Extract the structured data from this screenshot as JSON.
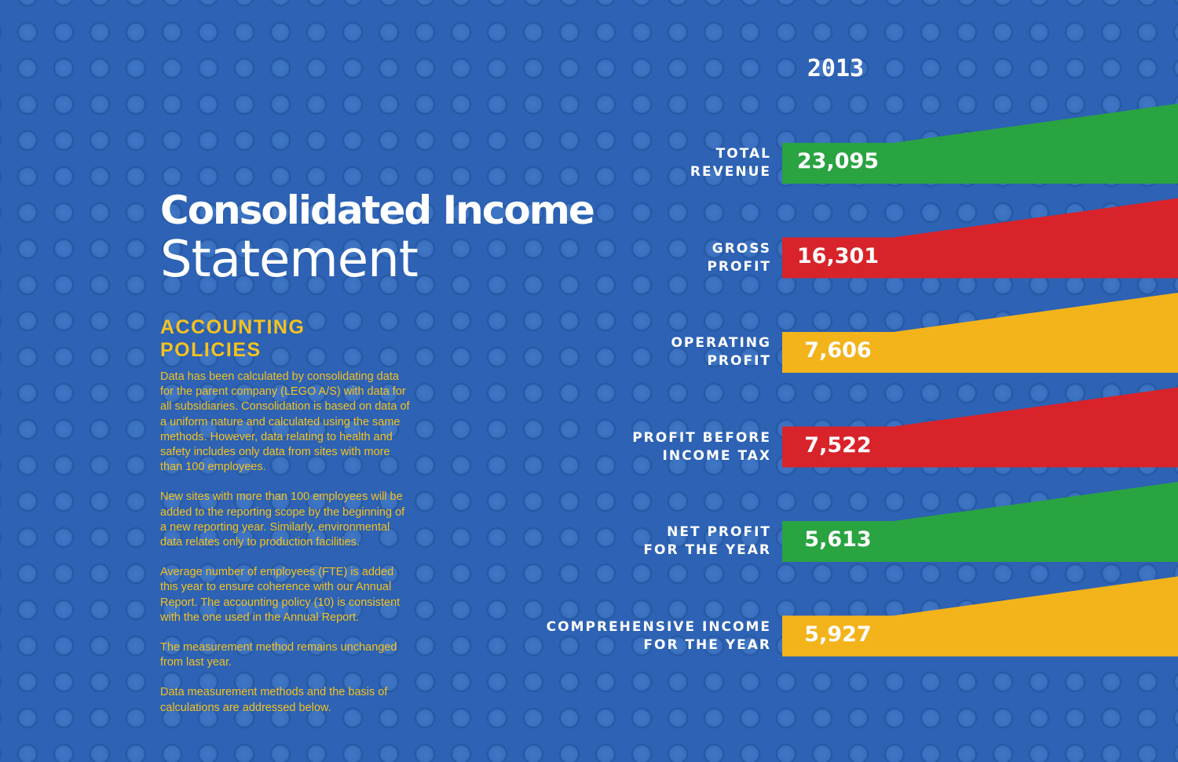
{
  "title": {
    "line1": "Consolidated Income",
    "line2": "Statement"
  },
  "policies": {
    "heading": "ACCOUNTING POLICIES",
    "paragraphs": [
      "Data has been calculated by consolidating data for the parent company (LEGO A/S) with data for all subsidiaries. Consolidation is based on data of a uniform nature and calculated using the same methods. However, data relating to health and safety includes only data from sites with more than 100 employees.",
      "New sites with more than 100 employees will be added to the reporting scope by the beginning of a new reporting year. Similarly, environmental data relates only to production facilities.",
      "Average number of employees (FTE) is added this year to ensure coherence with our Annual Report. The accounting policy (10) is consistent with the one used in the Annual Report.",
      "The measurement method remains unchanged from last year.",
      "Data measurement methods and the basis of calculations are addressed below."
    ]
  },
  "chart_data": {
    "type": "bar",
    "year": "2013",
    "rows": [
      {
        "label1": "TOTAL",
        "label2": "REVENUE",
        "value_label": "23,095",
        "value": 23095,
        "color": "#2aa341"
      },
      {
        "label1": "GROSS",
        "label2": "PROFIT",
        "value_label": "16,301",
        "value": 16301,
        "color": "#d8232a"
      },
      {
        "label1": "OPERATING",
        "label2": "PROFIT",
        "value_label": "7,606",
        "value": 7606,
        "color": "#f3b31b"
      },
      {
        "label1": "PROFIT BEFORE",
        "label2": "INCOME TAX",
        "value_label": "7,522",
        "value": 7522,
        "color": "#d8232a"
      },
      {
        "label1": "NET PROFIT",
        "label2": "FOR THE YEAR",
        "value_label": "5,613",
        "value": 5613,
        "color": "#2aa341"
      },
      {
        "label1": "COMPREHENSIVE INCOME",
        "label2": "FOR THE YEAR",
        "value_label": "5,927",
        "value": 5927,
        "color": "#f3b31b"
      }
    ]
  }
}
